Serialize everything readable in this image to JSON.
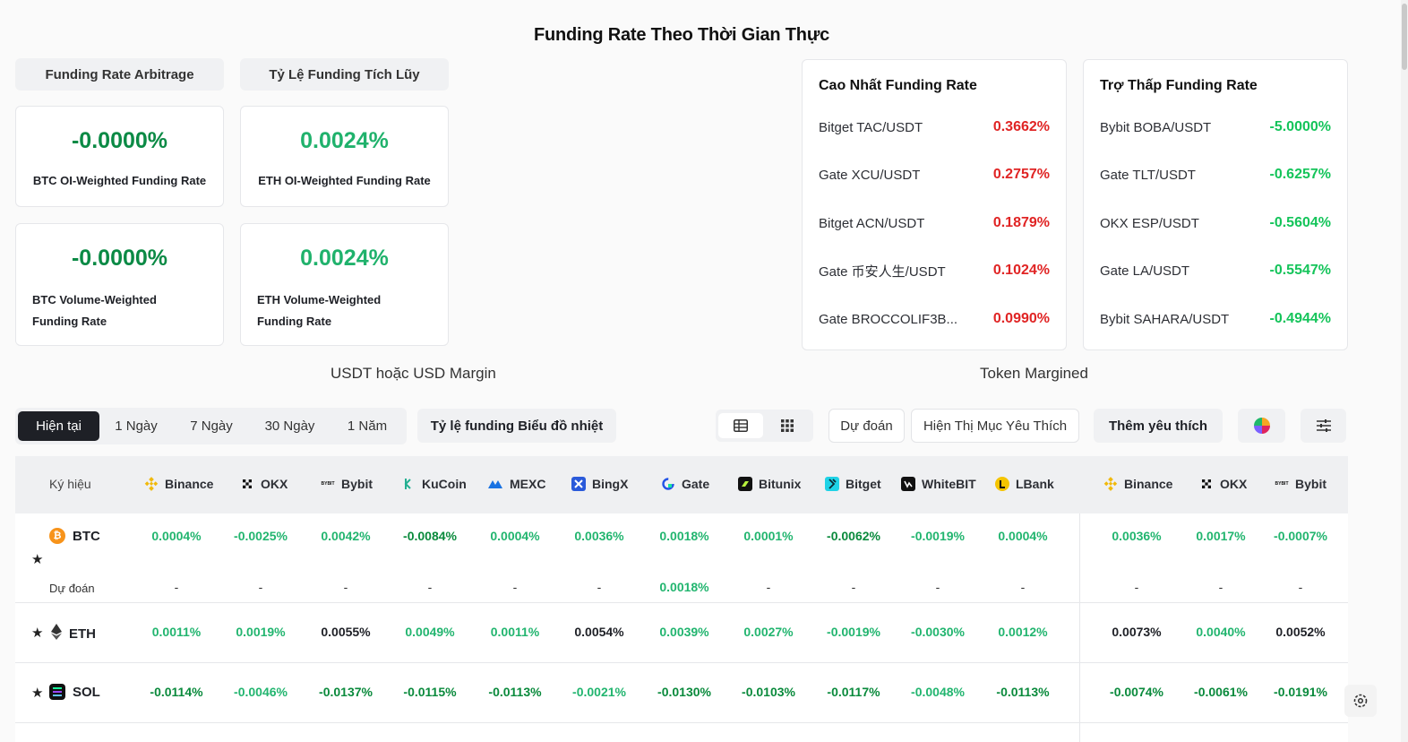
{
  "page": {
    "title": "Funding Rate Theo Thời Gian Thực"
  },
  "top_tabs": [
    "Funding Rate Arbitrage",
    "Tỷ Lệ Funding Tích Lũy"
  ],
  "stats": [
    {
      "value": "-0.0000%",
      "label": "BTC OI-Weighted Funding Rate"
    },
    {
      "value": "0.0024%",
      "label": "ETH OI-Weighted Funding Rate"
    },
    {
      "value": "-0.0000%",
      "label": "BTC Volume-Weighted Funding Rate"
    },
    {
      "value": "0.0024%",
      "label": "ETH Volume-Weighted Funding Rate"
    }
  ],
  "highest": {
    "title": "Cao Nhất Funding Rate",
    "items": [
      {
        "name": "Bitget TAC/USDT",
        "value": "0.3662%"
      },
      {
        "name": "Gate XCU/USDT",
        "value": "0.2757%"
      },
      {
        "name": "Bitget ACN/USDT",
        "value": "0.1879%"
      },
      {
        "name": "Gate 币安人生/USDT",
        "value": "0.1024%"
      },
      {
        "name": "Gate BROCCOLIF3B...",
        "value": "0.0990%"
      }
    ]
  },
  "lowest": {
    "title": "Trợ Thấp Funding Rate",
    "items": [
      {
        "name": "Bybit BOBA/USDT",
        "value": "-5.0000%"
      },
      {
        "name": "Gate TLT/USDT",
        "value": "-0.6257%"
      },
      {
        "name": "OKX ESP/USDT",
        "value": "-0.5604%"
      },
      {
        "name": "Gate LA/USDT",
        "value": "-0.5547%"
      },
      {
        "name": "Bybit SAHARA/USDT",
        "value": "-0.4944%"
      }
    ]
  },
  "sections": {
    "usdt": "USDT hoặc USD Margin",
    "token": "Token Margined"
  },
  "periods": [
    "Hiện tại",
    "1 Ngày",
    "7 Ngày",
    "30 Ngày",
    "1 Năm"
  ],
  "toolbar": {
    "heatmap": "Tỷ lệ funding Biểu đồ nhiệt",
    "predict": "Dự đoán",
    "show_fav": "Hiện Thị Mục Yêu Thích",
    "add_fav": "Thêm yêu thích"
  },
  "table": {
    "symbol_header": "Ký hiệu",
    "exchanges": [
      "Binance",
      "OKX",
      "Bybit",
      "KuCoin",
      "MEXC",
      "BingX",
      "Gate",
      "Bitunix",
      "Bitget",
      "WhiteBIT",
      "LBank",
      "Binance",
      "OKX",
      "Bybit"
    ],
    "predict_label": "Dự đoán",
    "rows": [
      {
        "symbol": "BTC",
        "rates": [
          "0.0004%",
          "-0.0025%",
          "0.0042%",
          "-0.0084%",
          "0.0004%",
          "0.0036%",
          "0.0018%",
          "0.0001%",
          "-0.0062%",
          "-0.0019%",
          "0.0004%",
          "0.0036%",
          "0.0017%",
          "-0.0007%"
        ],
        "predicted": [
          "-",
          "-",
          "-",
          "-",
          "-",
          "-",
          "0.0018%",
          "-",
          "-",
          "-",
          "-",
          "-",
          "-",
          "-"
        ]
      },
      {
        "symbol": "ETH",
        "rates": [
          "0.0011%",
          "0.0019%",
          "0.0055%",
          "0.0049%",
          "0.0011%",
          "0.0054%",
          "0.0039%",
          "0.0027%",
          "-0.0019%",
          "-0.0030%",
          "0.0012%",
          "0.0073%",
          "0.0040%",
          "0.0052%"
        ]
      },
      {
        "symbol": "SOL",
        "rates": [
          "-0.0114%",
          "-0.0046%",
          "-0.0137%",
          "-0.0115%",
          "-0.0113%",
          "-0.0021%",
          "-0.0130%",
          "-0.0103%",
          "-0.0117%",
          "-0.0048%",
          "-0.0113%",
          "-0.0074%",
          "-0.0061%",
          "-0.0191%"
        ]
      }
    ]
  },
  "colors": {
    "positive_green": "#22b56f",
    "strong_green": "#14c45a",
    "negative_red": "#e02424",
    "dark": "#1e2026"
  }
}
